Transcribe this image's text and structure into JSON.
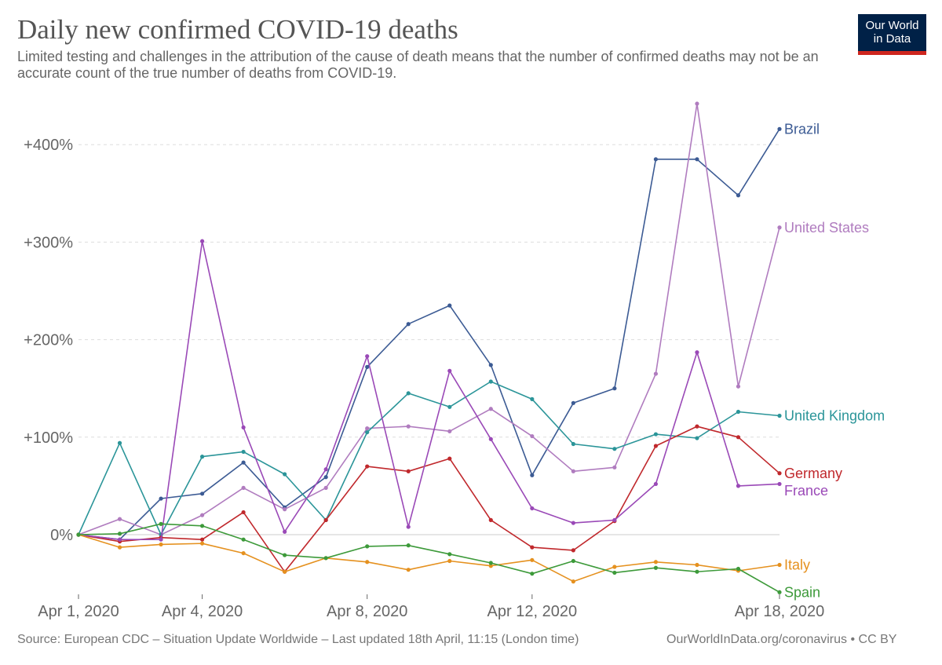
{
  "title": "Daily new confirmed COVID-19 deaths",
  "subtitle": "Limited testing and challenges in the attribution of the cause of death means that the number of confirmed deaths may not be an accurate count of the true number of deaths from COVID-19.",
  "logo": {
    "line1": "Our World",
    "line2": "in Data"
  },
  "footer": {
    "source": "Source: European CDC – Situation Update Worldwide – Last updated 18th April, 11:15 (London time)",
    "credit": "OurWorldInData.org/coronavirus • CC BY"
  },
  "colors": {
    "brand": "#002147",
    "accent": "#ce261e"
  },
  "chart_data": {
    "type": "line",
    "x": [
      "2020-04-01",
      "2020-04-02",
      "2020-04-03",
      "2020-04-04",
      "2020-04-05",
      "2020-04-06",
      "2020-04-07",
      "2020-04-08",
      "2020-04-09",
      "2020-04-10",
      "2020-04-11",
      "2020-04-12",
      "2020-04-13",
      "2020-04-14",
      "2020-04-15",
      "2020-04-16",
      "2020-04-17",
      "2020-04-18"
    ],
    "x_ticks": [
      {
        "date": "2020-04-01",
        "label": "Apr 1, 2020"
      },
      {
        "date": "2020-04-04",
        "label": "Apr 4, 2020"
      },
      {
        "date": "2020-04-08",
        "label": "Apr 8, 2020"
      },
      {
        "date": "2020-04-12",
        "label": "Apr 12, 2020"
      },
      {
        "date": "2020-04-18",
        "label": "Apr 18, 2020"
      }
    ],
    "y_ticks": [
      {
        "value": 0,
        "label": "0%"
      },
      {
        "value": 100,
        "label": "+100%"
      },
      {
        "value": 200,
        "label": "+200%"
      },
      {
        "value": 300,
        "label": "+300%"
      },
      {
        "value": 400,
        "label": "+400%"
      }
    ],
    "ylim": [
      -60,
      440
    ],
    "grid": true,
    "legend": "right, at line ends",
    "series": [
      {
        "name": "Brazil",
        "color": "#3c5b94",
        "values": [
          0,
          -5,
          37,
          42,
          74,
          28,
          59,
          172,
          216,
          235,
          174,
          61,
          135,
          150,
          385,
          385,
          348,
          416
        ]
      },
      {
        "name": "United States",
        "color": "#b07cbf",
        "values": [
          0,
          16,
          0,
          20,
          48,
          26,
          48,
          109,
          111,
          106,
          129,
          101,
          65,
          69,
          165,
          442,
          152,
          315
        ]
      },
      {
        "name": "United Kingdom",
        "color": "#2b9599",
        "values": [
          0,
          94,
          0,
          80,
          85,
          62,
          15,
          105,
          145,
          131,
          157,
          139,
          93,
          88,
          103,
          99,
          126,
          122
        ]
      },
      {
        "name": "Germany",
        "color": "#c0282c",
        "values": [
          0,
          -7,
          -3,
          -5,
          23,
          -38,
          15,
          70,
          65,
          78,
          15,
          -13,
          -16,
          14,
          91,
          111,
          100,
          63
        ]
      },
      {
        "name": "France",
        "color": "#9a49b7",
        "values": [
          0,
          -5,
          -5,
          301,
          110,
          3,
          67,
          183,
          8,
          168,
          98,
          27,
          12,
          15,
          52,
          187,
          50,
          52
        ]
      },
      {
        "name": "Italy",
        "color": "#e5911f",
        "values": [
          0,
          -13,
          -10,
          -9,
          -19,
          -38,
          -24,
          -28,
          -36,
          -27,
          -32,
          -26,
          -48,
          -33,
          -28,
          -31,
          -37,
          -31
        ]
      },
      {
        "name": "Spain",
        "color": "#3d9a3a",
        "values": [
          0,
          1,
          11,
          9,
          -5,
          -21,
          -24,
          -12,
          -11,
          -20,
          -29,
          -40,
          -27,
          -39,
          -34,
          -38,
          -35,
          -59
        ]
      }
    ]
  }
}
